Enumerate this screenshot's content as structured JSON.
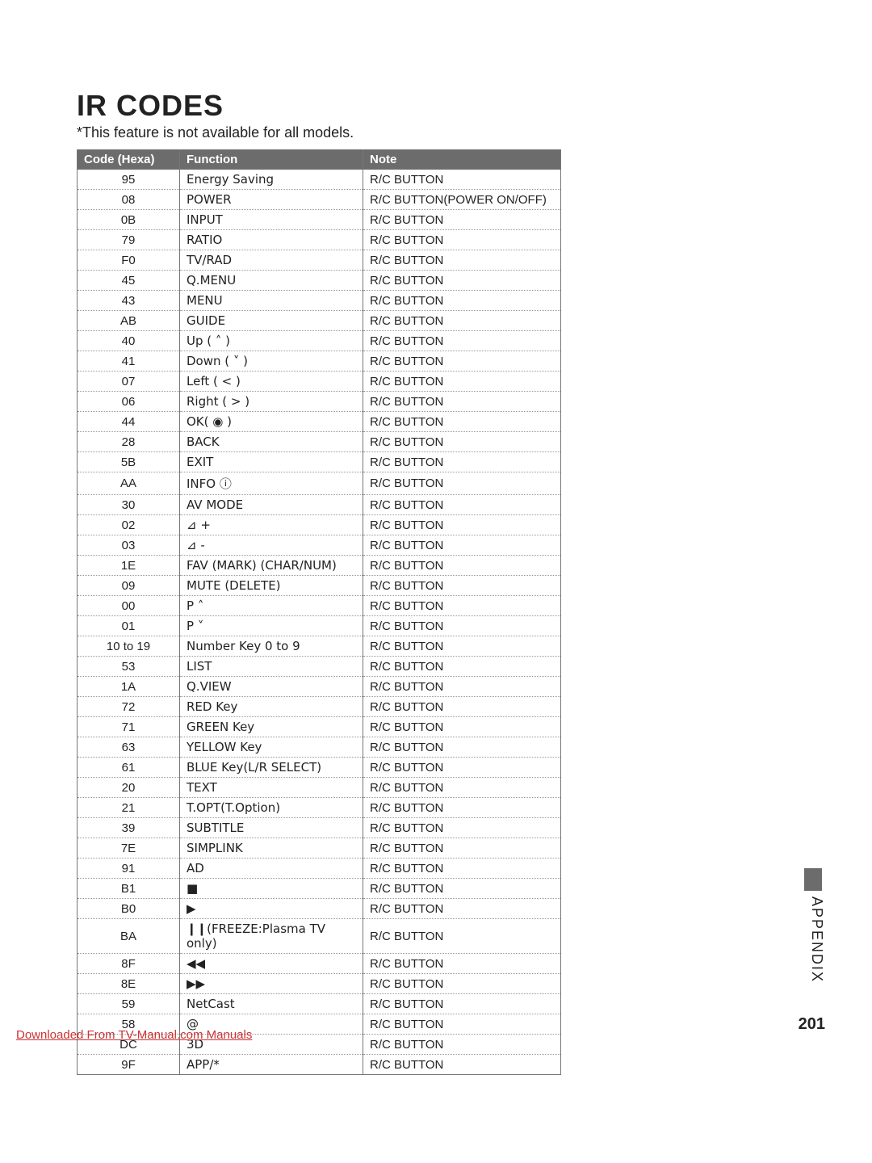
{
  "title": "IR CODES",
  "subtitle": "*This feature is not available for all models.",
  "headers": {
    "code": "Code (Hexa)",
    "func": "Function",
    "note": "Note"
  },
  "rows": [
    {
      "code": "95",
      "func": "Energy Saving",
      "note": "R/C BUTTON"
    },
    {
      "code": "08",
      "func": "POWER",
      "note": "R/C BUTTON(POWER ON/OFF)"
    },
    {
      "code": "0B",
      "func": "INPUT",
      "note": "R/C BUTTON"
    },
    {
      "code": "79",
      "func": "RATIO",
      "note": "R/C BUTTON"
    },
    {
      "code": "F0",
      "func": "TV/RAD",
      "note": "R/C BUTTON"
    },
    {
      "code": "45",
      "func": "Q.MENU",
      "note": "R/C BUTTON"
    },
    {
      "code": "43",
      "func": "MENU",
      "note": "R/C BUTTON"
    },
    {
      "code": "AB",
      "func": "GUIDE",
      "note": "R/C BUTTON"
    },
    {
      "code": "40",
      "func": "Up ( ˄ )",
      "note": "R/C BUTTON"
    },
    {
      "code": "41",
      "func": "Down ( ˅ )",
      "note": "R/C BUTTON"
    },
    {
      "code": "07",
      "func": "Left ( < )",
      "note": "R/C BUTTON"
    },
    {
      "code": "06",
      "func": "Right ( > )",
      "note": "R/C BUTTON"
    },
    {
      "code": "44",
      "func": "OK( ◉ )",
      "note": "R/C BUTTON"
    },
    {
      "code": "28",
      "func": "BACK",
      "note": "R/C BUTTON"
    },
    {
      "code": "5B",
      "func": "EXIT",
      "note": "R/C BUTTON"
    },
    {
      "code": "AA",
      "func": "INFO ⓘ",
      "note": "R/C BUTTON"
    },
    {
      "code": "30",
      "func": "AV MODE",
      "note": "R/C BUTTON"
    },
    {
      "code": "02",
      "func": "⊿ +",
      "note": "R/C BUTTON"
    },
    {
      "code": "03",
      "func": "⊿ -",
      "note": "R/C BUTTON"
    },
    {
      "code": "1E",
      "func": "FAV (MARK) (CHAR/NUM)",
      "note": "R/C BUTTON"
    },
    {
      "code": "09",
      "func": "MUTE (DELETE)",
      "note": "R/C BUTTON"
    },
    {
      "code": "00",
      "func": "P ˄",
      "note": "R/C BUTTON"
    },
    {
      "code": "01",
      "func": "P ˅",
      "note": "R/C BUTTON"
    },
    {
      "code": "10 to 19",
      "func": "Number Key 0 to 9",
      "note": "R/C BUTTON"
    },
    {
      "code": "53",
      "func": "LIST",
      "note": "R/C BUTTON"
    },
    {
      "code": "1A",
      "func": "Q.VIEW",
      "note": "R/C BUTTON"
    },
    {
      "code": "72",
      "func": "RED Key",
      "note": "R/C BUTTON"
    },
    {
      "code": "71",
      "func": "GREEN Key",
      "note": "R/C BUTTON"
    },
    {
      "code": "63",
      "func": "YELLOW Key",
      "note": "R/C BUTTON"
    },
    {
      "code": "61",
      "func": "BLUE Key(L/R SELECT)",
      "note": "R/C BUTTON"
    },
    {
      "code": "20",
      "func": "TEXT",
      "note": "R/C BUTTON"
    },
    {
      "code": "21",
      "func": "T.OPT(T.Option)",
      "note": "R/C BUTTON"
    },
    {
      "code": "39",
      "func": "SUBTITLE",
      "note": "R/C BUTTON"
    },
    {
      "code": "7E",
      "func": "SIMPLINK",
      "note": "R/C BUTTON"
    },
    {
      "code": "91",
      "func": "AD",
      "note": "R/C BUTTON"
    },
    {
      "code": "B1",
      "func": "■",
      "note": "R/C BUTTON"
    },
    {
      "code": "B0",
      "func": "▶",
      "note": "R/C BUTTON"
    },
    {
      "code": "BA",
      "func": "❙❙(FREEZE:Plasma TV only)",
      "note": "R/C BUTTON"
    },
    {
      "code": "8F",
      "func": "◀◀",
      "note": "R/C BUTTON"
    },
    {
      "code": "8E",
      "func": "▶▶",
      "note": "R/C BUTTON"
    },
    {
      "code": "59",
      "func": "NetCast",
      "note": "R/C BUTTON"
    },
    {
      "code": "58",
      "func": "@",
      "note": "R/C BUTTON"
    },
    {
      "code": "DC",
      "func": "3D",
      "note": "R/C BUTTON"
    },
    {
      "code": "9F",
      "func": "APP/*",
      "note": "R/C BUTTON"
    }
  ],
  "sideLabel": "APPENDIX",
  "pageNumber": "201",
  "downloadText": "Downloaded From TV-Manual.com Manuals"
}
